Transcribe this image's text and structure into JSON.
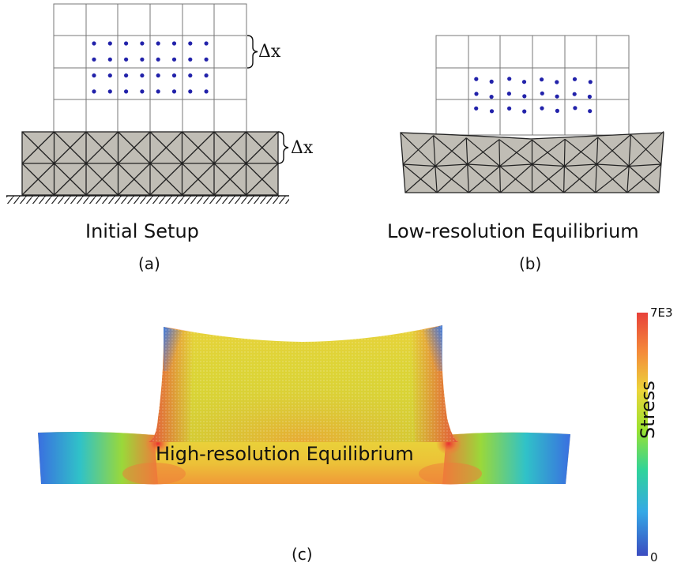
{
  "panel_a": {
    "title": "Initial Setup",
    "sublabel": "(a)",
    "delta_top": "Δx",
    "delta_side": "Δx"
  },
  "panel_b": {
    "title": "Low-resolution Equilibrium",
    "sublabel": "(b)"
  },
  "panel_c": {
    "title": "High-resolution Equilibrium",
    "sublabel": "(c)"
  },
  "colorbar": {
    "label": "Stress",
    "max": "7E3",
    "min": "0",
    "colors": [
      "#3b4cc0",
      "#35a8e6",
      "#2fd39b",
      "#9be22f",
      "#ecd53a",
      "#f48a3a",
      "#e8413a"
    ]
  },
  "colors": {
    "particles": "#2222aa",
    "elastic_fill": "#c0bdb5",
    "grid": "#777777"
  }
}
